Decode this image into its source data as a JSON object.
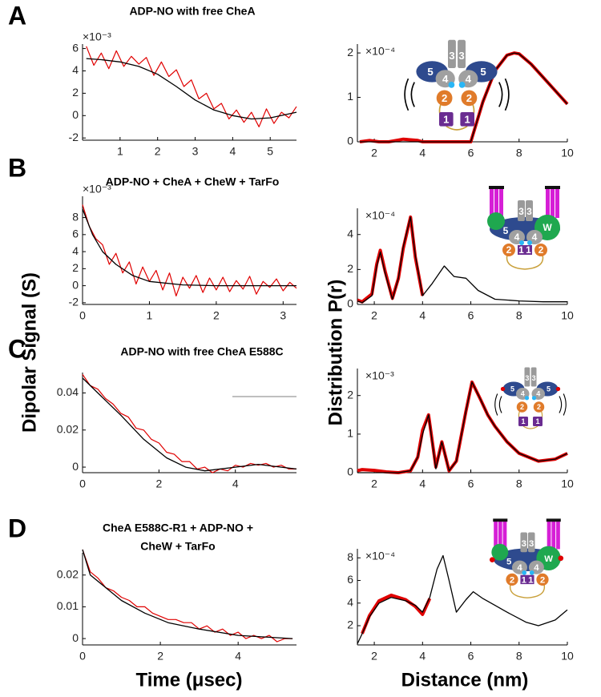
{
  "panels": [
    "A",
    "B",
    "C",
    "D"
  ],
  "labels": {
    "y_left": "Dipolar Signal (S)",
    "y_right": "Distribution  P(r)",
    "x_left": "Time (μsec)",
    "x_right": "Distance (nm)"
  },
  "chart_data": [
    {
      "type": "line",
      "title": "ADP-NO with free CheA",
      "y_multiplier": "×10⁻³",
      "xlim": [
        0,
        5.7
      ],
      "xticks": [
        1,
        2,
        3,
        4,
        5
      ],
      "ylim": [
        -2.2,
        6.4
      ],
      "yticks": [
        -2,
        0,
        2,
        4,
        6
      ],
      "series": [
        {
          "color": "#e00000",
          "x": [
            0.1,
            0.3,
            0.5,
            0.7,
            0.9,
            1.1,
            1.3,
            1.5,
            1.7,
            1.9,
            2.1,
            2.3,
            2.5,
            2.7,
            2.9,
            3.1,
            3.3,
            3.5,
            3.7,
            3.9,
            4.1,
            4.3,
            4.5,
            4.7,
            4.9,
            5.1,
            5.3,
            5.5,
            5.7
          ],
          "values": [
            6.2,
            4.5,
            5.6,
            4.2,
            5.8,
            4.4,
            5.3,
            4.6,
            5.2,
            3.6,
            4.8,
            3.5,
            4.1,
            2.6,
            3.2,
            1.5,
            2.0,
            0.6,
            1.1,
            -0.3,
            0.5,
            -0.6,
            0.3,
            -1.0,
            0.6,
            -0.7,
            0.3,
            -0.2,
            0.8
          ]
        },
        {
          "color": "#000000",
          "x": [
            0.1,
            0.5,
            1,
            1.5,
            2,
            2.5,
            3,
            3.5,
            4,
            4.5,
            5,
            5.7
          ],
          "values": [
            5.1,
            5,
            4.8,
            4.4,
            3.7,
            2.6,
            1.4,
            0.5,
            0,
            -0.3,
            -0.2,
            0.3
          ]
        }
      ]
    },
    {
      "type": "line",
      "y_multiplier": "×10⁻⁴",
      "xlim": [
        1.3,
        10
      ],
      "xticks": [
        2,
        4,
        6,
        8,
        10
      ],
      "ylim": [
        0,
        2.2
      ],
      "yticks": [
        0,
        1,
        2
      ],
      "cartoon_labels": [
        "3",
        "3",
        "5",
        "5",
        "4",
        "4",
        "2",
        "2",
        "1",
        "1"
      ],
      "series": [
        {
          "color": "#e00000",
          "x": [
            1.4,
            1.8,
            2.2,
            2.6,
            3.0,
            3.2,
            3.4,
            3.6,
            3.8,
            4.0,
            6.0,
            6.5,
            7,
            7.5,
            7.8,
            8,
            8.5,
            9,
            9.5,
            10
          ],
          "values": [
            0,
            0.03,
            0,
            0,
            0.04,
            0.06,
            0.05,
            0.04,
            0.03,
            0,
            0,
            0.9,
            1.6,
            1.95,
            2.0,
            1.98,
            1.75,
            1.45,
            1.15,
            0.85
          ]
        },
        {
          "color": "#000000",
          "x": [
            1.4,
            2,
            4,
            6,
            6.5,
            7,
            7.5,
            7.8,
            8,
            8.5,
            9,
            9.5,
            10
          ],
          "values": [
            0,
            0,
            0,
            0,
            0.9,
            1.6,
            1.95,
            2.0,
            1.98,
            1.75,
            1.45,
            1.15,
            0.85
          ]
        }
      ]
    },
    {
      "type": "line",
      "title": "ADP-NO + CheA + CheW + TarFo",
      "y_multiplier": "×10⁻³",
      "xlim": [
        0,
        3.2
      ],
      "xticks": [
        0,
        1,
        2,
        3
      ],
      "ylim": [
        -2.2,
        10.5
      ],
      "yticks": [
        -2,
        0,
        2,
        4,
        6,
        8
      ],
      "series": [
        {
          "color": "#e00000",
          "x": [
            0,
            0.1,
            0.2,
            0.3,
            0.4,
            0.5,
            0.6,
            0.7,
            0.8,
            0.9,
            1,
            1.1,
            1.2,
            1.3,
            1.4,
            1.5,
            1.6,
            1.7,
            1.8,
            1.9,
            2,
            2.1,
            2.2,
            2.3,
            2.4,
            2.5,
            2.6,
            2.7,
            2.8,
            2.9,
            3,
            3.1,
            3.2
          ],
          "values": [
            9.5,
            7.0,
            5.5,
            4.8,
            2.5,
            3.8,
            1.5,
            2.8,
            0.2,
            2.2,
            0.5,
            1.8,
            -0.5,
            1.5,
            -1.2,
            1.0,
            -0.3,
            1.2,
            -0.8,
            0.9,
            -0.5,
            1.0,
            -0.7,
            0.6,
            -0.4,
            1.1,
            -1.0,
            0.5,
            -0.2,
            0.8,
            -0.6,
            0.4,
            -0.3
          ]
        },
        {
          "color": "#000000",
          "x": [
            0,
            0.15,
            0.3,
            0.5,
            0.75,
            1,
            1.5,
            2,
            2.5,
            3.2
          ],
          "values": [
            9,
            6,
            4,
            2.5,
            1.2,
            0.5,
            0.1,
            0,
            0,
            0
          ]
        }
      ]
    },
    {
      "type": "line",
      "y_multiplier": "×10⁻⁴",
      "xlim": [
        1.3,
        10
      ],
      "xticks": [
        2,
        4,
        6,
        8,
        10
      ],
      "ylim": [
        0,
        5.5
      ],
      "yticks": [
        0,
        2,
        4
      ],
      "cartoon_labels": [
        "3",
        "3",
        "5",
        "W",
        "4",
        "4",
        "2",
        "1",
        "1",
        "2"
      ],
      "series": [
        {
          "color": "#e00000",
          "x": [
            1.3,
            1.5,
            1.9,
            2.1,
            2.25,
            2.45,
            2.75,
            3.0,
            3.2,
            3.5,
            3.7,
            4.0
          ],
          "values": [
            0.25,
            0.15,
            0.6,
            2.3,
            3.1,
            1.9,
            0.35,
            1.5,
            3.2,
            5.0,
            2.7,
            0.5
          ]
        },
        {
          "color": "#000000",
          "x": [
            1.3,
            1.5,
            1.9,
            2.1,
            2.25,
            2.45,
            2.75,
            3.0,
            3.2,
            3.5,
            3.7,
            4.0,
            4.4,
            4.9,
            5.3,
            5.8,
            6.3,
            7,
            8,
            9,
            10
          ],
          "values": [
            0.2,
            0.1,
            0.5,
            2.2,
            3.0,
            1.8,
            0.3,
            1.5,
            3.3,
            5.0,
            2.8,
            0.5,
            1.2,
            2.2,
            1.6,
            1.5,
            0.8,
            0.3,
            0.2,
            0.15,
            0.15
          ]
        }
      ]
    },
    {
      "type": "line",
      "title": "ADP-NO with free CheA E588C",
      "xlim": [
        0,
        5.6
      ],
      "xticks": [
        0,
        2,
        4
      ],
      "ylim": [
        -0.003,
        0.051
      ],
      "yticks": [
        0,
        0.02,
        0.04
      ],
      "series": [
        {
          "color": "#e00000",
          "x": [
            0,
            0.2,
            0.4,
            0.6,
            0.8,
            1,
            1.2,
            1.4,
            1.6,
            1.8,
            2,
            2.2,
            2.4,
            2.6,
            2.8,
            3,
            3.2,
            3.4,
            3.6,
            3.8,
            4,
            4.2,
            4.4,
            4.6,
            4.8,
            5,
            5.2,
            5.4,
            5.6
          ],
          "values": [
            0.05,
            0.044,
            0.042,
            0.037,
            0.034,
            0.029,
            0.027,
            0.021,
            0.02,
            0.015,
            0.013,
            0.008,
            0.007,
            0.003,
            0.003,
            -0.001,
            0.0,
            -0.003,
            -0.001,
            -0.002,
            0.001,
            0.0,
            0.002,
            0.001,
            0.002,
            0.0,
            0.001,
            -0.001,
            -0.001
          ]
        },
        {
          "color": "#000000",
          "x": [
            0,
            0.4,
            1,
            1.6,
            2.2,
            2.7,
            3.2,
            4,
            4.6,
            5.2,
            5.6
          ],
          "values": [
            0.048,
            0.04,
            0.028,
            0.015,
            0.005,
            0,
            -0.002,
            0,
            0.0015,
            0,
            -0.001
          ]
        }
      ]
    },
    {
      "type": "line",
      "y_multiplier": "×10⁻³",
      "xlim": [
        1.3,
        10
      ],
      "xticks": [
        2,
        4,
        6,
        8,
        10
      ],
      "ylim": [
        0,
        2.7
      ],
      "yticks": [
        0,
        1,
        2
      ],
      "cartoon_labels": [
        "3",
        "3",
        "5",
        "5",
        "4",
        "4",
        "2",
        "2",
        "1",
        "1"
      ],
      "series": [
        {
          "color": "#e00000",
          "x": [
            1.3,
            1.5,
            2,
            2.5,
            3,
            3.5,
            3.8,
            4.0,
            4.25,
            4.55,
            4.8,
            5.1,
            5.4,
            5.8,
            6.05,
            6.4,
            6.7,
            7,
            7.5,
            8,
            8.8,
            9.5,
            10
          ],
          "values": [
            0.05,
            0.08,
            0.06,
            0.02,
            0,
            0.05,
            0.4,
            1.1,
            1.5,
            0.15,
            0.8,
            0.05,
            0.3,
            1.6,
            2.35,
            1.9,
            1.5,
            1.2,
            0.8,
            0.5,
            0.3,
            0.35,
            0.5
          ]
        },
        {
          "color": "#000000",
          "x": [
            1.3,
            2,
            3,
            3.5,
            3.8,
            4.0,
            4.25,
            4.55,
            4.8,
            5.1,
            5.4,
            5.8,
            6.05,
            6.4,
            6.7,
            7,
            7.5,
            8,
            8.8,
            9.5,
            10
          ],
          "values": [
            0,
            0,
            0,
            0.05,
            0.4,
            1.0,
            1.5,
            0.1,
            0.8,
            0.05,
            0.3,
            1.6,
            2.35,
            1.9,
            1.5,
            1.2,
            0.8,
            0.5,
            0.3,
            0.35,
            0.5
          ]
        }
      ]
    },
    {
      "type": "line",
      "title": [
        "CheA E588C-R1 + ADP-NO +",
        "CheW + TarFo"
      ],
      "xlim": [
        0,
        5.5
      ],
      "xticks": [
        0,
        2,
        4
      ],
      "ylim": [
        -0.002,
        0.027
      ],
      "yticks": [
        0,
        0.01,
        0.02
      ],
      "series": [
        {
          "color": "#e00000",
          "x": [
            0,
            0.2,
            0.4,
            0.6,
            0.8,
            1,
            1.2,
            1.4,
            1.6,
            1.8,
            2,
            2.2,
            2.4,
            2.6,
            2.8,
            3,
            3.2,
            3.4,
            3.6,
            3.8,
            4,
            4.2,
            4.4,
            4.6,
            4.8,
            5,
            5.2,
            5.4
          ],
          "values": [
            0.028,
            0.021,
            0.019,
            0.016,
            0.015,
            0.013,
            0.012,
            0.01,
            0.01,
            0.008,
            0.007,
            0.006,
            0.006,
            0.005,
            0.005,
            0.003,
            0.004,
            0.002,
            0.003,
            0.001,
            0.002,
            0.0,
            0.001,
            0.0,
            0.001,
            -0.001,
            0.0,
            0.0
          ]
        },
        {
          "color": "#000000",
          "x": [
            0,
            0.2,
            0.6,
            1,
            1.6,
            2.2,
            3,
            4,
            5.4
          ],
          "values": [
            0.028,
            0.02,
            0.016,
            0.012,
            0.008,
            0.005,
            0.003,
            0.001,
            0
          ]
        }
      ]
    },
    {
      "type": "line",
      "y_multiplier": "×10⁻⁴",
      "xlim": [
        1.3,
        10
      ],
      "xticks": [
        2,
        4,
        6,
        8,
        10
      ],
      "ylim": [
        0.3,
        8.8
      ],
      "yticks": [
        2,
        4,
        6,
        8
      ],
      "cartoon_labels": [
        "3",
        "3",
        "5",
        "W",
        "4",
        "4",
        "2",
        "1",
        "1",
        "2"
      ],
      "series": [
        {
          "color": "#e00000",
          "x": [
            1.5,
            1.8,
            2.2,
            2.7,
            3.3,
            3.7,
            4.0,
            4.3
          ],
          "values": [
            1.3,
            2.9,
            4.2,
            4.7,
            4.3,
            3.7,
            3.0,
            4.4
          ]
        },
        {
          "color": "#000000",
          "x": [
            1.3,
            1.5,
            1.8,
            2.2,
            2.7,
            3.3,
            3.7,
            4.0,
            4.3,
            4.6,
            4.85,
            5.1,
            5.4,
            5.8,
            6.1,
            6.5,
            7,
            7.5,
            8.3,
            8.8,
            9.5,
            10
          ],
          "values": [
            0.4,
            1.3,
            2.8,
            4.0,
            4.5,
            4.2,
            3.8,
            3.2,
            4.5,
            7.0,
            8.2,
            6,
            3.2,
            4.3,
            5.0,
            4.4,
            3.8,
            3.2,
            2.3,
            2.0,
            2.5,
            3.4
          ]
        }
      ]
    }
  ]
}
